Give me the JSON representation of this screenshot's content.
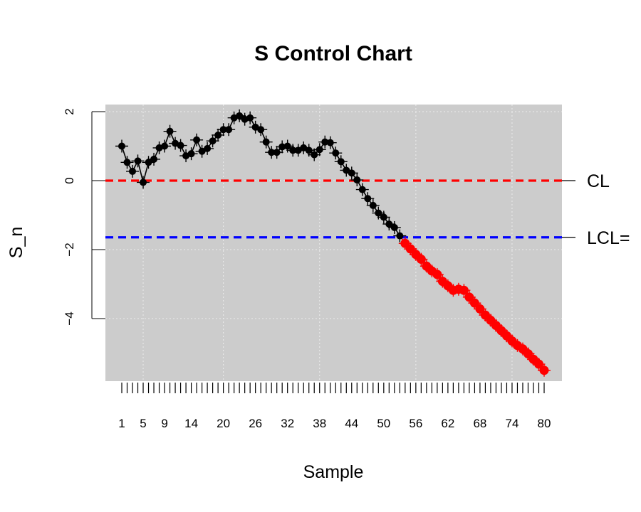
{
  "chart_data": {
    "type": "line",
    "title": "S Control Chart",
    "xlabel": "Sample",
    "ylabel": "S_n",
    "xlim": [
      1,
      80
    ],
    "ylim": [
      -5.7,
      2.2
    ],
    "y_ticks": [
      -4,
      -2,
      0,
      2
    ],
    "y_tick_labels": [
      "−4",
      "−2",
      "0",
      "2"
    ],
    "x_tick_labels": [
      "1",
      "5",
      "9",
      "14",
      "20",
      "26",
      "32",
      "38",
      "44",
      "50",
      "56",
      "62",
      "68",
      "74",
      "80"
    ],
    "x_tick_label_positions": [
      1,
      5,
      9,
      14,
      20,
      26,
      32,
      38,
      44,
      50,
      56,
      62,
      68,
      74,
      80
    ],
    "grid": true,
    "background_color": "#cccccc",
    "grid_color": "#ececec",
    "in_control_color": "#000000",
    "out_of_control_color": "#ff0000",
    "center_line": {
      "label": "CL",
      "value": 0,
      "color": "#ff0000",
      "style": "dashed"
    },
    "lower_control_limit": {
      "label": "LCL=",
      "value": -1.645,
      "color": "#0000ff",
      "style": "dashed"
    },
    "series": [
      {
        "x": [
          1,
          2,
          3,
          4,
          5,
          6,
          7,
          8,
          9,
          10,
          11,
          12,
          13,
          14,
          15,
          16,
          17,
          18,
          19,
          20,
          21,
          22,
          23,
          24,
          25,
          26,
          27,
          28,
          29,
          30,
          31,
          32,
          33,
          34,
          35,
          36,
          37,
          38,
          39,
          40,
          41,
          42,
          43,
          44,
          45,
          46,
          47,
          48,
          49,
          50,
          51,
          52,
          53,
          54,
          55,
          56,
          57,
          58,
          59,
          60,
          61,
          62,
          63,
          64,
          65,
          66,
          67,
          68,
          69,
          70,
          71,
          72,
          73,
          74,
          75,
          76,
          77,
          78,
          79,
          80
        ],
        "values": [
          1.0,
          0.53,
          0.27,
          0.57,
          -0.05,
          0.53,
          0.62,
          0.95,
          1.0,
          1.43,
          1.08,
          1.02,
          0.72,
          0.78,
          1.18,
          0.85,
          0.93,
          1.15,
          1.32,
          1.48,
          1.48,
          1.82,
          1.88,
          1.78,
          1.82,
          1.55,
          1.48,
          1.12,
          0.82,
          0.82,
          0.98,
          1.0,
          0.88,
          0.88,
          0.95,
          0.88,
          0.75,
          0.9,
          1.12,
          1.1,
          0.8,
          0.55,
          0.3,
          0.22,
          0.02,
          -0.26,
          -0.52,
          -0.72,
          -0.94,
          -1.06,
          -1.26,
          -1.36,
          -1.6,
          -1.82,
          -1.98,
          -2.14,
          -2.28,
          -2.48,
          -2.62,
          -2.72,
          -2.92,
          -3.05,
          -3.18,
          -3.15,
          -3.18,
          -3.38,
          -3.55,
          -3.72,
          -3.9,
          -4.05,
          -4.2,
          -4.35,
          -4.5,
          -4.65,
          -4.78,
          -4.88,
          -5.02,
          -5.18,
          -5.32,
          -5.5
        ],
        "out_of_control_from_index": 53
      }
    ]
  }
}
